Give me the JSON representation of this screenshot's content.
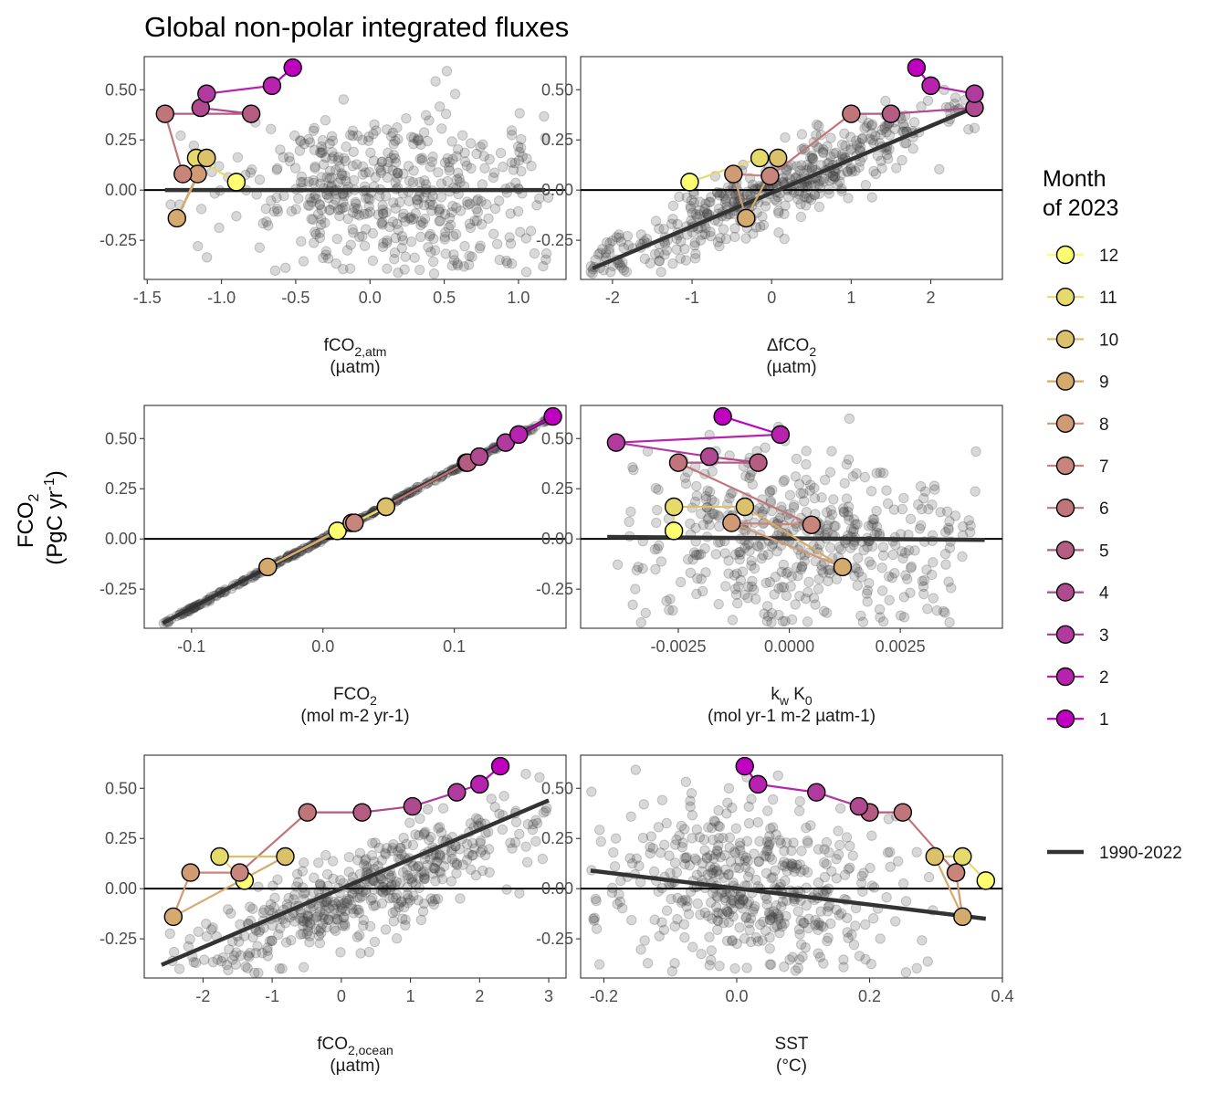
{
  "title": "Global non-polar integrated fluxes",
  "y_title_main": "FCO",
  "y_title_sub": "2",
  "y_title_units": "(PgC yr",
  "y_title_sup": "-1",
  "y_title_close": ")",
  "legend": {
    "title_line1": "Month",
    "title_line2": "of 2023",
    "month_labels": [
      "12",
      "11",
      "10",
      "9",
      "8",
      "7",
      "6",
      "5",
      "4",
      "3",
      "2",
      "1"
    ],
    "line_label": "1990-2022"
  },
  "colors": {
    "months": [
      "#c000c0",
      "#b723ae",
      "#b03a9e",
      "#b04a90",
      "#b55c82",
      "#c0757a",
      "#c7857c",
      "#d09a75",
      "#d4ab6d",
      "#dbc16a",
      "#e6da6b",
      "#fdfd72"
    ],
    "points": "#3a3a3a",
    "regression": "#333333",
    "zero_line": "#000000"
  },
  "chart_data": [
    {
      "type": "scatter",
      "name": "fco2atm",
      "xlabel_main": "fCO",
      "xlabel_sub": "2,atm",
      "xlabel_sup": "",
      "xlabel_units": "(µatm)",
      "xlim": [
        -1.52,
        1.32
      ],
      "ylim": [
        -0.445,
        0.665
      ],
      "x_ticks": [
        "-1.5",
        "-1.0",
        "-0.5",
        "0.0",
        "0.5",
        "1.0"
      ],
      "x_tick_values": [
        -1.5,
        -1.0,
        -0.5,
        0.0,
        0.5,
        1.0
      ],
      "y_ticks": [
        "0.50",
        "0.25",
        "0.00",
        "-0.25"
      ],
      "y_tick_values": [
        0.5,
        0.25,
        0.0,
        -0.25
      ],
      "regression": {
        "x": [
          -1.38,
          1.18
        ],
        "y": [
          0.0,
          0.0
        ]
      },
      "month_points": [
        [
          -0.52,
          0.61
        ],
        [
          -0.66,
          0.52
        ],
        [
          -1.1,
          0.48
        ],
        [
          -1.14,
          0.41
        ],
        [
          -0.8,
          0.38
        ],
        [
          -1.38,
          0.38
        ],
        [
          -1.26,
          0.08
        ],
        [
          -1.16,
          0.08
        ],
        [
          -1.3,
          -0.14
        ],
        [
          -1.1,
          0.16
        ],
        [
          -1.17,
          0.16
        ],
        [
          -0.9,
          0.04
        ]
      ],
      "cloud": {
        "kind": "random",
        "x_range": [
          -1.38,
          1.2
        ],
        "x_mode": 0.15,
        "slope": -0.05,
        "spread": 0.2,
        "count": 480,
        "seed": 11
      }
    },
    {
      "type": "scatter",
      "name": "dfco2",
      "xlabel_main": "ΔfCO",
      "xlabel_sub": "2",
      "xlabel_sup": "",
      "xlabel_units": "(µatm)",
      "xlim": [
        -2.4,
        2.9
      ],
      "ylim": [
        -0.445,
        0.665
      ],
      "x_ticks": [
        "-2",
        "-1",
        "0",
        "1",
        "2"
      ],
      "x_tick_values": [
        -2,
        -1,
        0,
        1,
        2
      ],
      "y_ticks": [
        "0.50",
        "0.25",
        "0.00",
        "-0.25"
      ],
      "y_tick_values": [
        0.5,
        0.25,
        0.0,
        -0.25
      ],
      "regression": {
        "x": [
          -2.25,
          2.6
        ],
        "y": [
          -0.39,
          0.42
        ]
      },
      "month_points": [
        [
          1.82,
          0.61
        ],
        [
          2.0,
          0.52
        ],
        [
          2.55,
          0.48
        ],
        [
          2.55,
          0.41
        ],
        [
          1.5,
          0.38
        ],
        [
          1.0,
          0.38
        ],
        [
          -0.02,
          0.07
        ],
        [
          -0.48,
          0.08
        ],
        [
          -0.32,
          -0.14
        ],
        [
          0.08,
          0.16
        ],
        [
          -0.15,
          0.16
        ],
        [
          -1.03,
          0.04
        ]
      ],
      "cloud": {
        "kind": "random",
        "x_range": [
          -2.3,
          2.6
        ],
        "x_mode": 0.0,
        "slope": 0.168,
        "spread": 0.09,
        "count": 480,
        "seed": 23
      }
    },
    {
      "type": "scatter",
      "name": "fco2flux",
      "xlabel_main": "FCO",
      "xlabel_sub": "2",
      "xlabel_sup": "",
      "xlabel_units": "(mol m-2 yr-1)",
      "xlim": [
        -0.136,
        0.185
      ],
      "ylim": [
        -0.445,
        0.665
      ],
      "x_ticks": [
        "-0.1",
        "0.0",
        "0.1"
      ],
      "x_tick_values": [
        -0.1,
        0.0,
        0.1
      ],
      "y_ticks": [
        "0.50",
        "0.25",
        "0.00",
        "-0.25"
      ],
      "y_tick_values": [
        0.5,
        0.25,
        0.0,
        -0.25
      ],
      "regression": {
        "x": [
          -0.122,
          0.175
        ],
        "y": [
          -0.42,
          0.61
        ]
      },
      "month_points": [
        [
          0.175,
          0.61
        ],
        [
          0.149,
          0.52
        ],
        [
          0.139,
          0.48
        ],
        [
          0.119,
          0.41
        ],
        [
          0.11,
          0.38
        ],
        [
          0.109,
          0.38
        ],
        [
          0.024,
          0.08
        ],
        [
          0.022,
          0.08
        ],
        [
          -0.042,
          -0.14
        ],
        [
          0.048,
          0.16
        ],
        [
          0.048,
          0.16
        ],
        [
          0.011,
          0.04
        ]
      ],
      "cloud": {
        "kind": "line",
        "x_range": [
          -0.122,
          0.175
        ],
        "slope": 3.47,
        "spread": 0.004,
        "count": 300,
        "seed": 5
      }
    },
    {
      "type": "scatter",
      "name": "kwk0",
      "xlabel_main": "k",
      "xlabel_sub": "w",
      "xlabel_sup": "",
      "xlabel_units": "(mol yr-1 m-2 µatm-1)",
      "xlim": [
        -0.0047,
        0.0048
      ],
      "ylim": [
        -0.445,
        0.665
      ],
      "x_ticks": [
        "-0.0025",
        "0.0000",
        "0.0025"
      ],
      "x_tick_values": [
        -0.0025,
        0.0,
        0.0025
      ],
      "y_ticks": [
        "0.50",
        "0.25",
        "0.00",
        "-0.25"
      ],
      "y_tick_values": [
        0.5,
        0.25,
        0.0,
        -0.25
      ],
      "regression": {
        "x": [
          -0.0041,
          0.0044
        ],
        "y": [
          0.01,
          -0.005
        ]
      },
      "month_points": [
        [
          -0.0015,
          0.61
        ],
        [
          -0.0002,
          0.52
        ],
        [
          -0.0039,
          0.48
        ],
        [
          -0.0018,
          0.41
        ],
        [
          -0.0007,
          0.38
        ],
        [
          -0.0025,
          0.38
        ],
        [
          0.0005,
          0.07
        ],
        [
          -0.0013,
          0.08
        ],
        [
          0.0012,
          -0.14
        ],
        [
          -0.001,
          0.16
        ],
        [
          -0.0026,
          0.16
        ],
        [
          -0.0026,
          0.04
        ]
      ],
      "cloud": {
        "kind": "random",
        "x_range": [
          -0.004,
          0.0043
        ],
        "x_mode": 0.0003,
        "slope": -5,
        "spread": 0.2,
        "count": 480,
        "seed": 37
      }
    },
    {
      "type": "scatter",
      "name": "fco2ocean",
      "xlabel_main": "fCO",
      "xlabel_sub": "2,ocean",
      "xlabel_sup": "",
      "xlabel_units": "(µatm)",
      "xlim": [
        -2.85,
        3.25
      ],
      "ylim": [
        -0.445,
        0.665
      ],
      "x_ticks": [
        "-2",
        "-1",
        "0",
        "1",
        "2",
        "3"
      ],
      "x_tick_values": [
        -2,
        -1,
        0,
        1,
        2,
        3
      ],
      "y_ticks": [
        "0.50",
        "0.25",
        "0.00",
        "-0.25"
      ],
      "y_tick_values": [
        0.5,
        0.25,
        0.0,
        -0.25
      ],
      "regression": {
        "x": [
          -2.6,
          3.0
        ],
        "y": [
          -0.38,
          0.44
        ]
      },
      "month_points": [
        [
          2.3,
          0.61
        ],
        [
          2.0,
          0.52
        ],
        [
          1.67,
          0.48
        ],
        [
          1.03,
          0.41
        ],
        [
          0.3,
          0.38
        ],
        [
          -0.49,
          0.38
        ],
        [
          -1.47,
          0.08
        ],
        [
          -2.18,
          0.08
        ],
        [
          -2.43,
          -0.14
        ],
        [
          -0.81,
          0.16
        ],
        [
          -1.76,
          0.16
        ],
        [
          -1.4,
          0.04
        ]
      ],
      "cloud": {
        "kind": "random",
        "x_range": [
          -2.6,
          3.0
        ],
        "x_mode": 0.4,
        "slope": 0.146,
        "spread": 0.12,
        "count": 480,
        "seed": 53
      }
    },
    {
      "type": "scatter",
      "name": "sst",
      "xlabel_main": "SST",
      "xlabel_sub": "",
      "xlabel_sup": "",
      "xlabel_units": "(°C)",
      "xlim": [
        -0.235,
        0.4
      ],
      "ylim": [
        -0.445,
        0.665
      ],
      "x_ticks": [
        "-0.2",
        "0.0",
        "0.2",
        "0.4"
      ],
      "x_tick_values": [
        -0.2,
        0.0,
        0.2,
        0.4
      ],
      "y_ticks": [
        "0.50",
        "0.25",
        "0.00",
        "-0.25"
      ],
      "y_tick_values": [
        0.5,
        0.25,
        0.0,
        -0.25
      ],
      "regression": {
        "x": [
          -0.22,
          0.375
        ],
        "y": [
          0.09,
          -0.15
        ]
      },
      "month_points": [
        [
          0.012,
          0.61
        ],
        [
          0.032,
          0.52
        ],
        [
          0.12,
          0.48
        ],
        [
          0.184,
          0.41
        ],
        [
          0.2,
          0.38
        ],
        [
          0.25,
          0.38
        ],
        [
          0.33,
          0.08
        ],
        [
          0.33,
          0.08
        ],
        [
          0.34,
          -0.14
        ],
        [
          0.298,
          0.16
        ],
        [
          0.34,
          0.16
        ],
        [
          0.375,
          0.04
        ]
      ],
      "cloud": {
        "kind": "random",
        "x_range": [
          -0.22,
          0.3
        ],
        "x_mode": 0.02,
        "slope": -0.4,
        "spread": 0.2,
        "count": 480,
        "seed": 71
      }
    }
  ]
}
